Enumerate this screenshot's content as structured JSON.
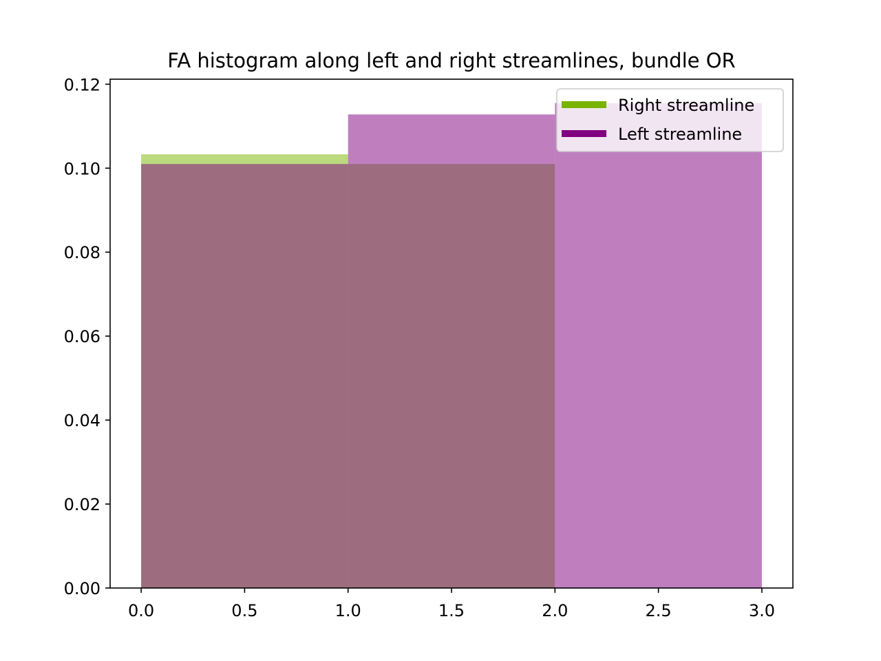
{
  "chart_data": {
    "type": "bar",
    "title": "FA histogram along left and right streamlines, bundle OR",
    "xlabel": "",
    "ylabel": "",
    "xlim": [
      -0.15,
      3.15
    ],
    "ylim": [
      0,
      0.1212
    ],
    "xticks": [
      0.0,
      0.5,
      1.0,
      1.5,
      2.0,
      2.5,
      3.0
    ],
    "xtick_labels": [
      "0.0",
      "0.5",
      "1.0",
      "1.5",
      "2.0",
      "2.5",
      "3.0"
    ],
    "yticks": [
      0.0,
      0.02,
      0.04,
      0.06,
      0.08,
      0.1,
      0.12
    ],
    "ytick_labels": [
      "0.00",
      "0.02",
      "0.04",
      "0.06",
      "0.08",
      "0.10",
      "0.12"
    ],
    "grid": false,
    "legend_position": "top-right",
    "bar_alpha": 0.5,
    "series": [
      {
        "name": "Right streamline",
        "color": "#77b300",
        "bins": [
          {
            "x0": 0,
            "x1": 1,
            "value": 0.1033
          },
          {
            "x0": 1,
            "x1": 2,
            "value": 0.101
          }
        ]
      },
      {
        "name": "Left streamline",
        "color": "#800080",
        "bins": [
          {
            "x0": 0,
            "x1": 1,
            "value": 0.101
          },
          {
            "x0": 1,
            "x1": 2,
            "value": 0.1128
          },
          {
            "x0": 2,
            "x1": 3,
            "value": 0.1155
          }
        ]
      }
    ]
  }
}
